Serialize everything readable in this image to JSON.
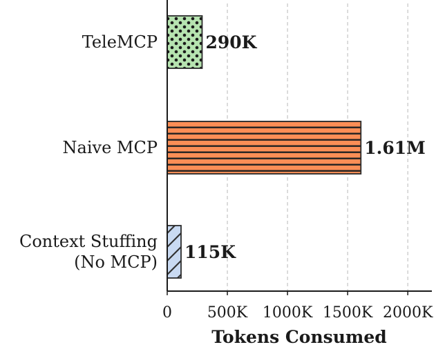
{
  "chart_data": {
    "type": "bar",
    "orientation": "horizontal",
    "categories": [
      "TeleMCP",
      "Naive MCP",
      "Context Stuffing (No MCP)"
    ],
    "category_lines": [
      [
        "TeleMCP"
      ],
      [
        "Naive MCP"
      ],
      [
        "Context Stuffing",
        "(No MCP)"
      ]
    ],
    "values": [
      290000,
      1610000,
      115000
    ],
    "value_labels": [
      "290K",
      "1.61M",
      "115K"
    ],
    "xlabel": "Tokens Consumed",
    "ylabel": "",
    "xlim": [
      0,
      2200000
    ],
    "xticks": [
      0,
      500000,
      1000000,
      1500000,
      2000000
    ],
    "xtick_labels": [
      "0",
      "500K",
      "1000K",
      "1500K",
      "2000K"
    ],
    "grid": "x-axis, dashed",
    "colors": [
      "#b6e3b0",
      "#fb8e56",
      "#c9daf2"
    ],
    "hatches": [
      "dots",
      "horizontal-lines",
      "diagonal-lines"
    ]
  }
}
